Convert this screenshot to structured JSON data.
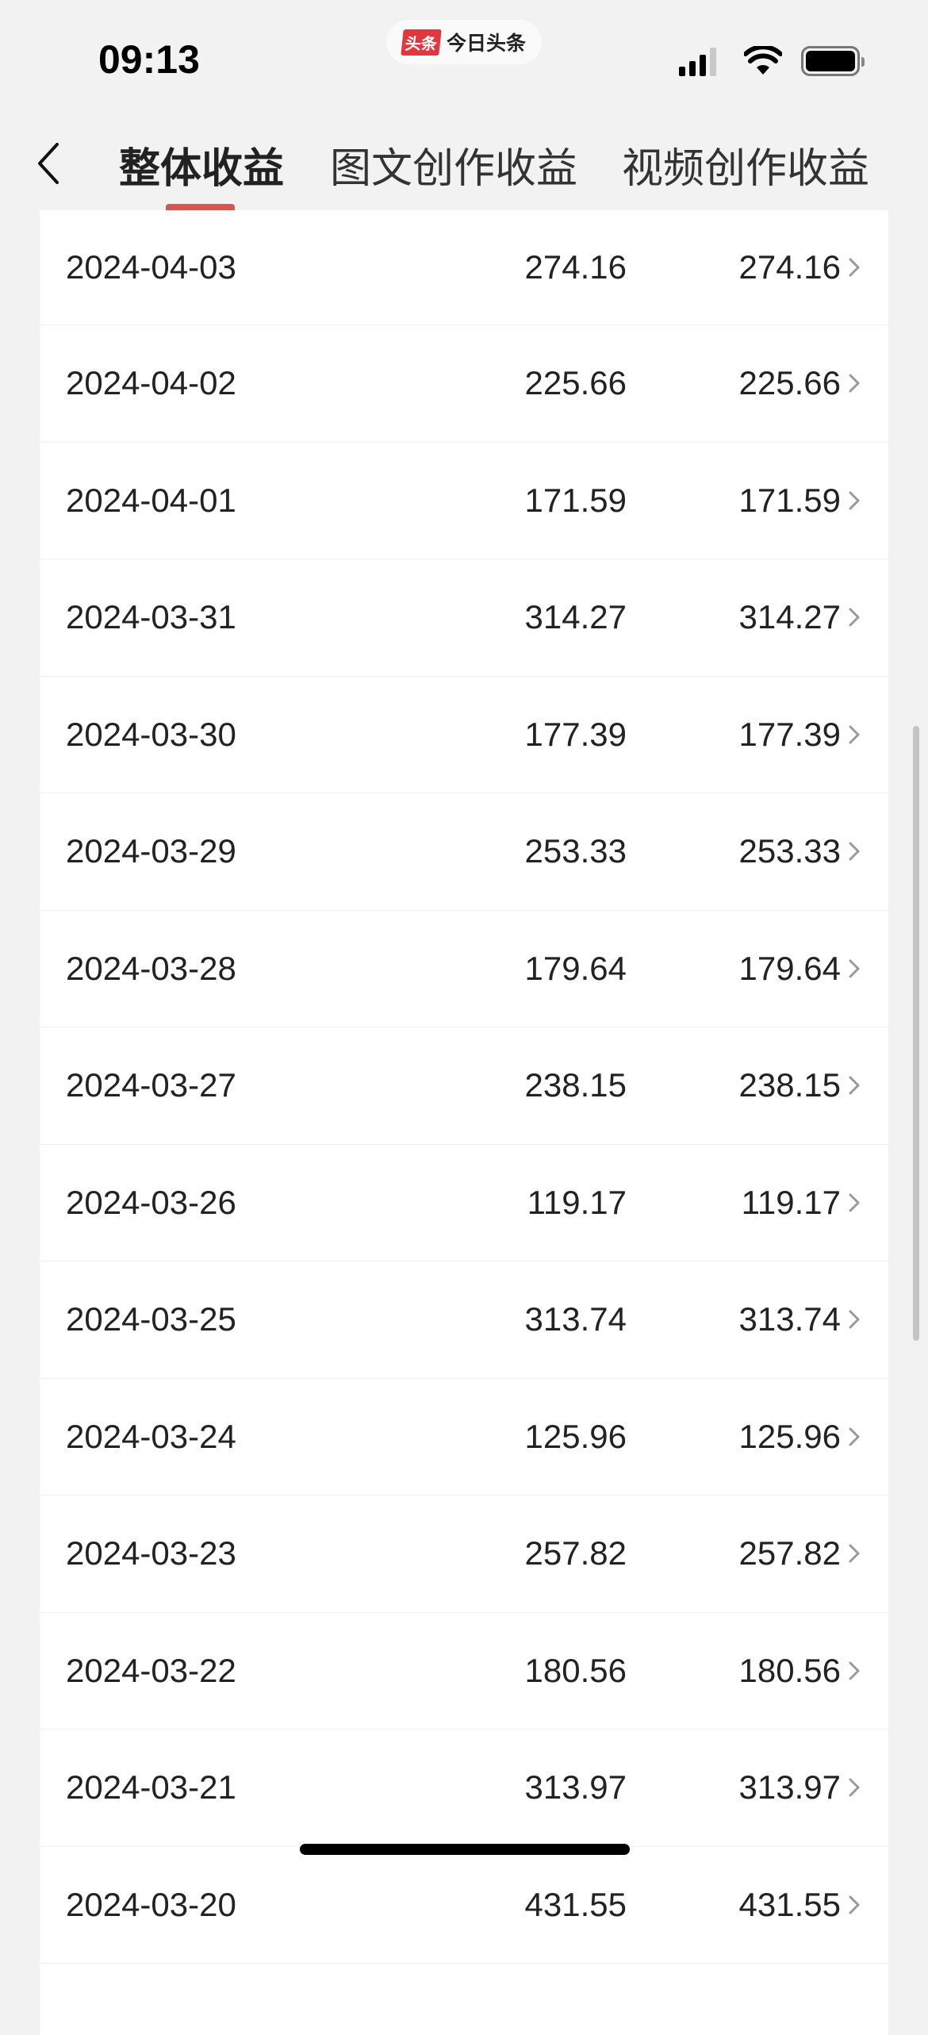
{
  "status_bar": {
    "time": "09:13",
    "app_pill": {
      "logo_text": "头条",
      "name": "今日头条"
    }
  },
  "nav": {
    "tabs": [
      {
        "label": "整体收益",
        "active": true
      },
      {
        "label": "图文创作收益",
        "active": false
      },
      {
        "label": "视频创作收益",
        "active": false
      }
    ],
    "accent_color": "#d9534f"
  },
  "rows": [
    {
      "date": "2024-04-03",
      "value1": "274.16",
      "value2": "274.16"
    },
    {
      "date": "2024-04-02",
      "value1": "225.66",
      "value2": "225.66"
    },
    {
      "date": "2024-04-01",
      "value1": "171.59",
      "value2": "171.59"
    },
    {
      "date": "2024-03-31",
      "value1": "314.27",
      "value2": "314.27"
    },
    {
      "date": "2024-03-30",
      "value1": "177.39",
      "value2": "177.39"
    },
    {
      "date": "2024-03-29",
      "value1": "253.33",
      "value2": "253.33"
    },
    {
      "date": "2024-03-28",
      "value1": "179.64",
      "value2": "179.64"
    },
    {
      "date": "2024-03-27",
      "value1": "238.15",
      "value2": "238.15"
    },
    {
      "date": "2024-03-26",
      "value1": "119.17",
      "value2": "119.17"
    },
    {
      "date": "2024-03-25",
      "value1": "313.74",
      "value2": "313.74"
    },
    {
      "date": "2024-03-24",
      "value1": "125.96",
      "value2": "125.96"
    },
    {
      "date": "2024-03-23",
      "value1": "257.82",
      "value2": "257.82"
    },
    {
      "date": "2024-03-22",
      "value1": "180.56",
      "value2": "180.56"
    },
    {
      "date": "2024-03-21",
      "value1": "313.97",
      "value2": "313.97"
    },
    {
      "date": "2024-03-20",
      "value1": "431.55",
      "value2": "431.55"
    }
  ]
}
